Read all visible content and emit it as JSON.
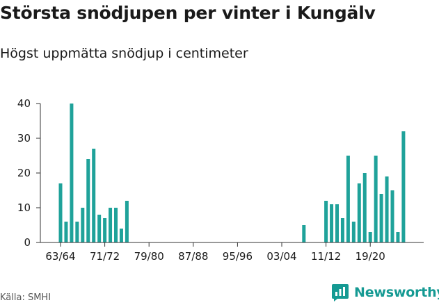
{
  "header": {
    "title": "Största snödjupen per vinter i Kungälv",
    "subtitle": "Högst uppmätta snödjup i centimeter"
  },
  "footer": {
    "source": "Källa: SMHI",
    "brand": "Newsworthy"
  },
  "colors": {
    "bar": "#1fa29a",
    "brand": "#159a93",
    "axis": "#333333",
    "text": "#1a1a1a"
  },
  "chart_data": {
    "type": "bar",
    "title": "Största snödjupen per vinter i Kungälv",
    "subtitle": "Högst uppmätta snödjup i centimeter",
    "xlabel": "",
    "ylabel": "",
    "ylim": [
      0,
      40
    ],
    "yticks": [
      0,
      10,
      20,
      30,
      40
    ],
    "grid": false,
    "xtick_labels": [
      "63/64",
      "71/72",
      "79/80",
      "87/88",
      "95/96",
      "03/04",
      "11/12",
      "19/20"
    ],
    "categories": [
      "63/64",
      "64/65",
      "65/66",
      "66/67",
      "67/68",
      "68/69",
      "69/70",
      "70/71",
      "71/72",
      "72/73",
      "73/74",
      "74/75",
      "75/76",
      "76/77",
      "77/78",
      "78/79",
      "79/80",
      "80/81",
      "81/82",
      "82/83",
      "83/84",
      "84/85",
      "85/86",
      "86/87",
      "87/88",
      "88/89",
      "89/90",
      "90/91",
      "91/92",
      "92/93",
      "93/94",
      "94/95",
      "95/96",
      "96/97",
      "97/98",
      "98/99",
      "99/00",
      "00/01",
      "01/02",
      "02/03",
      "03/04",
      "04/05",
      "05/06",
      "06/07",
      "07/08",
      "08/09",
      "09/10",
      "10/11",
      "11/12",
      "12/13",
      "13/14",
      "14/15",
      "15/16",
      "16/17",
      "17/18",
      "18/19",
      "19/20",
      "20/21",
      "21/22",
      "22/23",
      "23/24",
      "24/25",
      "25/26"
    ],
    "values": [
      17,
      6,
      40,
      6,
      10,
      24,
      27,
      8,
      7,
      10,
      10,
      4,
      12,
      null,
      null,
      null,
      null,
      null,
      null,
      null,
      null,
      null,
      null,
      null,
      null,
      null,
      null,
      null,
      null,
      null,
      null,
      null,
      null,
      null,
      null,
      null,
      null,
      null,
      null,
      null,
      null,
      null,
      null,
      null,
      5,
      null,
      null,
      null,
      12,
      11,
      11,
      7,
      25,
      6,
      17,
      20,
      3,
      25,
      14,
      19,
      15,
      3,
      32
    ]
  }
}
